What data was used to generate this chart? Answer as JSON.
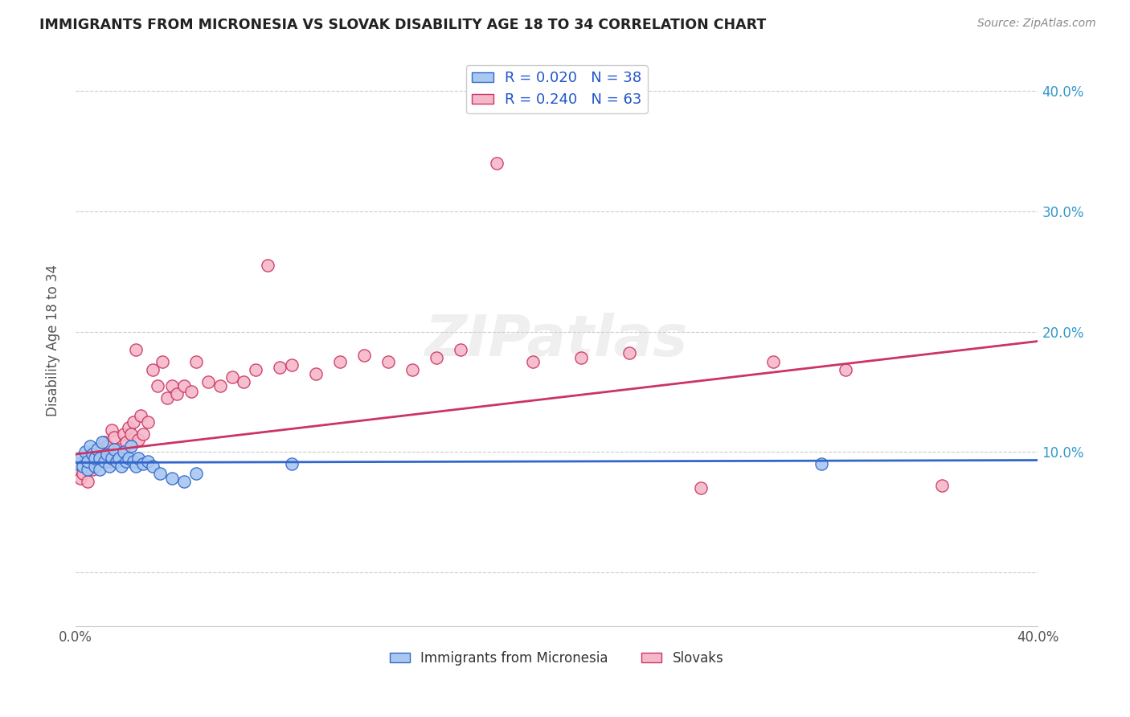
{
  "title": "IMMIGRANTS FROM MICRONESIA VS SLOVAK DISABILITY AGE 18 TO 34 CORRELATION CHART",
  "source_text": "Source: ZipAtlas.com",
  "ylabel": "Disability Age 18 to 34",
  "xlabel": "",
  "xlim": [
    0.0,
    0.4
  ],
  "ylim": [
    -0.045,
    0.43
  ],
  "R_blue": 0.02,
  "N_blue": 38,
  "R_pink": 0.24,
  "N_pink": 63,
  "blue_color": "#a8c8f0",
  "pink_color": "#f5b8c8",
  "blue_line_color": "#3366cc",
  "pink_line_color": "#cc3366",
  "legend_color": "#2255cc",
  "watermark": "ZIPatlas",
  "blue_line_x": [
    0.0,
    0.4
  ],
  "blue_line_y": [
    0.091,
    0.093
  ],
  "pink_line_x": [
    0.0,
    0.4
  ],
  "pink_line_y": [
    0.098,
    0.192
  ],
  "blue_scatter_x": [
    0.001,
    0.002,
    0.003,
    0.004,
    0.005,
    0.005,
    0.006,
    0.007,
    0.008,
    0.008,
    0.009,
    0.01,
    0.01,
    0.011,
    0.012,
    0.013,
    0.014,
    0.015,
    0.016,
    0.017,
    0.018,
    0.019,
    0.02,
    0.021,
    0.022,
    0.023,
    0.024,
    0.025,
    0.026,
    0.028,
    0.03,
    0.032,
    0.035,
    0.04,
    0.045,
    0.05,
    0.09,
    0.31
  ],
  "blue_scatter_y": [
    0.09,
    0.095,
    0.088,
    0.1,
    0.085,
    0.092,
    0.105,
    0.098,
    0.088,
    0.095,
    0.102,
    0.085,
    0.095,
    0.108,
    0.092,
    0.098,
    0.088,
    0.095,
    0.102,
    0.092,
    0.095,
    0.088,
    0.1,
    0.092,
    0.095,
    0.105,
    0.092,
    0.088,
    0.095,
    0.09,
    0.092,
    0.088,
    0.082,
    0.078,
    0.075,
    0.082,
    0.09,
    0.09
  ],
  "pink_scatter_x": [
    0.001,
    0.002,
    0.003,
    0.004,
    0.005,
    0.005,
    0.006,
    0.007,
    0.008,
    0.009,
    0.01,
    0.011,
    0.012,
    0.013,
    0.014,
    0.015,
    0.015,
    0.016,
    0.017,
    0.018,
    0.019,
    0.02,
    0.021,
    0.022,
    0.023,
    0.024,
    0.025,
    0.026,
    0.027,
    0.028,
    0.03,
    0.032,
    0.034,
    0.036,
    0.038,
    0.04,
    0.042,
    0.045,
    0.048,
    0.05,
    0.055,
    0.06,
    0.065,
    0.07,
    0.075,
    0.08,
    0.085,
    0.09,
    0.1,
    0.11,
    0.12,
    0.13,
    0.14,
    0.15,
    0.16,
    0.175,
    0.19,
    0.21,
    0.23,
    0.26,
    0.29,
    0.32,
    0.36
  ],
  "pink_scatter_y": [
    0.085,
    0.078,
    0.082,
    0.092,
    0.075,
    0.088,
    0.095,
    0.085,
    0.092,
    0.098,
    0.1,
    0.095,
    0.108,
    0.105,
    0.092,
    0.118,
    0.095,
    0.112,
    0.095,
    0.102,
    0.095,
    0.115,
    0.108,
    0.12,
    0.115,
    0.125,
    0.185,
    0.11,
    0.13,
    0.115,
    0.125,
    0.168,
    0.155,
    0.175,
    0.145,
    0.155,
    0.148,
    0.155,
    0.15,
    0.175,
    0.158,
    0.155,
    0.162,
    0.158,
    0.168,
    0.255,
    0.17,
    0.172,
    0.165,
    0.175,
    0.18,
    0.175,
    0.168,
    0.178,
    0.185,
    0.34,
    0.175,
    0.178,
    0.182,
    0.07,
    0.175,
    0.168,
    0.072
  ]
}
